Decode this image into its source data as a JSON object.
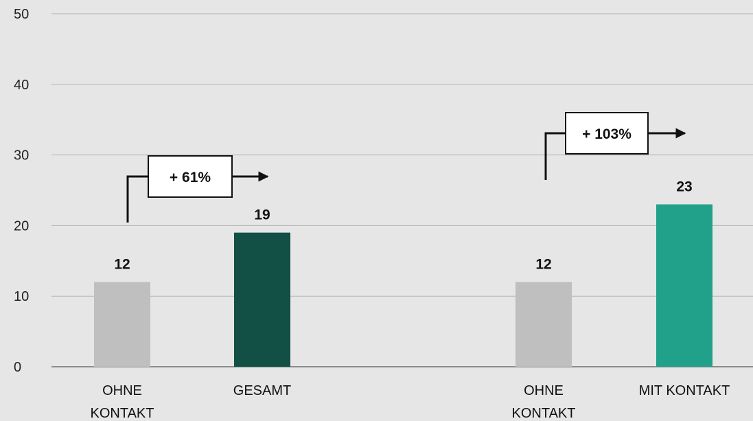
{
  "chart_data": {
    "type": "bar",
    "title": "",
    "xlabel": "",
    "ylabel": "",
    "ylim": [
      0,
      50
    ],
    "yticks": [
      0,
      10,
      20,
      30,
      40,
      50
    ],
    "grid": true,
    "groups": [
      {
        "bars": [
          {
            "label": [
              "OHNE",
              "KONTAKT"
            ],
            "value": 12,
            "value_label": "12",
            "color": "#bfbfbf"
          },
          {
            "label": [
              "GESAMT"
            ],
            "value": 19,
            "value_label": "19",
            "color": "#124f45"
          }
        ],
        "callout": "+ 61%"
      },
      {
        "bars": [
          {
            "label": [
              "OHNE",
              "KONTAKT"
            ],
            "value": 12,
            "value_label": "12",
            "color": "#bfbfbf"
          },
          {
            "label": [
              "MIT KONTAKT"
            ],
            "value": 23,
            "value_label": "23",
            "color": "#21a08a"
          }
        ],
        "callout": "+ 103%"
      }
    ]
  }
}
